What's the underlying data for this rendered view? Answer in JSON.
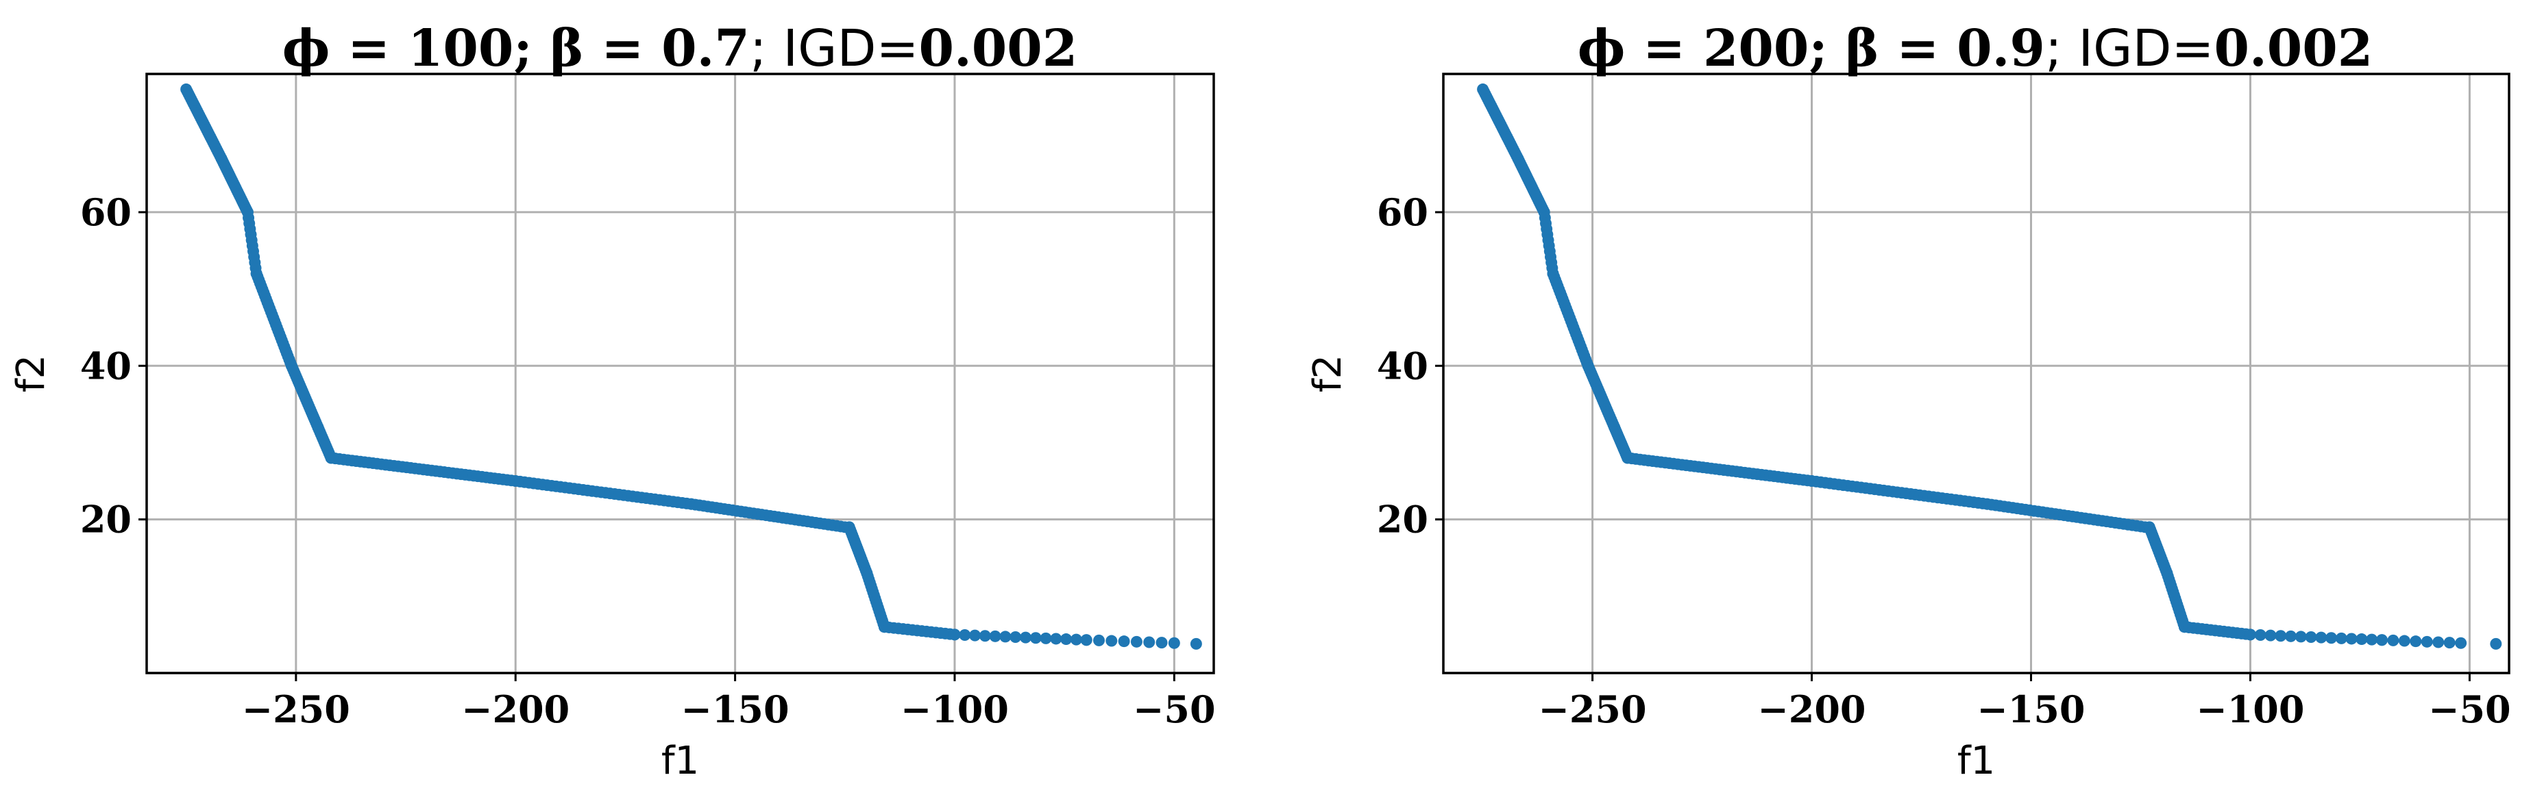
{
  "chart_data": [
    {
      "type": "scatter",
      "title_parts": [
        "ϕ = 100; β = 0.7",
        "; IGD=",
        "0.002"
      ],
      "xlabel": "f1",
      "ylabel": "f2",
      "xlim": [
        -284,
        -41
      ],
      "ylim": [
        0,
        78
      ],
      "xticks": [
        -250,
        -200,
        -150,
        -100,
        -50
      ],
      "xtick_labels": [
        "−250",
        "−200",
        "−150",
        "−100",
        "−50"
      ],
      "yticks": [
        20,
        40,
        60
      ],
      "ytick_labels": [
        "20",
        "40",
        "60"
      ],
      "grid": true,
      "color": "#1f77b4",
      "segments": [
        {
          "from": [
            -275,
            76
          ],
          "to": [
            -267,
            67
          ],
          "n": 30
        },
        {
          "from": [
            -267,
            67
          ],
          "to": [
            -261,
            60
          ],
          "n": 25
        },
        {
          "from": [
            -261,
            60
          ],
          "to": [
            -259,
            52
          ],
          "n": 12
        },
        {
          "from": [
            -259,
            52
          ],
          "to": [
            -251,
            40
          ],
          "n": 30
        },
        {
          "from": [
            -251,
            40
          ],
          "to": [
            -245,
            32
          ],
          "n": 25
        },
        {
          "from": [
            -245,
            32
          ],
          "to": [
            -242,
            28
          ],
          "n": 14
        },
        {
          "from": [
            -242,
            28
          ],
          "to": [
            -200,
            25
          ],
          "n": 45
        },
        {
          "from": [
            -200,
            25
          ],
          "to": [
            -160,
            22
          ],
          "n": 40
        },
        {
          "from": [
            -160,
            22
          ],
          "to": [
            -125,
            19
          ],
          "n": 38
        },
        {
          "from": [
            -124,
            19
          ],
          "to": [
            -120,
            13
          ],
          "n": 18
        },
        {
          "from": [
            -120,
            13
          ],
          "to": [
            -116,
            6
          ],
          "n": 18
        },
        {
          "from": [
            -116,
            6
          ],
          "to": [
            -100,
            5
          ],
          "n": 16
        },
        {
          "from": [
            -100,
            5
          ],
          "to": [
            -70,
            4.3
          ],
          "n": 14
        },
        {
          "from": [
            -70,
            4.3
          ],
          "to": [
            -50,
            3.9
          ],
          "n": 8
        },
        {
          "from": [
            -45,
            3.8
          ],
          "to": [
            -45,
            3.8
          ],
          "n": 1
        }
      ]
    },
    {
      "type": "scatter",
      "title_parts": [
        "ϕ = 200; β = 0.9",
        "; IGD=",
        "0.002"
      ],
      "xlabel": "f1",
      "ylabel": "f2",
      "xlim": [
        -284,
        -41
      ],
      "ylim": [
        0,
        78
      ],
      "xticks": [
        -250,
        -200,
        -150,
        -100,
        -50
      ],
      "xtick_labels": [
        "−250",
        "−200",
        "−150",
        "−100",
        "−50"
      ],
      "yticks": [
        20,
        40,
        60
      ],
      "ytick_labels": [
        "20",
        "40",
        "60"
      ],
      "grid": true,
      "color": "#1f77b4",
      "segments": [
        {
          "from": [
            -275,
            76
          ],
          "to": [
            -267,
            67
          ],
          "n": 30
        },
        {
          "from": [
            -267,
            67
          ],
          "to": [
            -261,
            60
          ],
          "n": 25
        },
        {
          "from": [
            -261,
            60
          ],
          "to": [
            -259,
            52
          ],
          "n": 12
        },
        {
          "from": [
            -259,
            52
          ],
          "to": [
            -251,
            40
          ],
          "n": 30
        },
        {
          "from": [
            -251,
            40
          ],
          "to": [
            -245,
            32
          ],
          "n": 25
        },
        {
          "from": [
            -245,
            32
          ],
          "to": [
            -242,
            28
          ],
          "n": 14
        },
        {
          "from": [
            -242,
            28
          ],
          "to": [
            -200,
            25
          ],
          "n": 45
        },
        {
          "from": [
            -200,
            25
          ],
          "to": [
            -160,
            22
          ],
          "n": 40
        },
        {
          "from": [
            -160,
            22
          ],
          "to": [
            -124,
            19
          ],
          "n": 38
        },
        {
          "from": [
            -123,
            19
          ],
          "to": [
            -119,
            13
          ],
          "n": 18
        },
        {
          "from": [
            -119,
            13
          ],
          "to": [
            -115,
            6
          ],
          "n": 18
        },
        {
          "from": [
            -115,
            6
          ],
          "to": [
            -100,
            5
          ],
          "n": 16
        },
        {
          "from": [
            -100,
            5
          ],
          "to": [
            -70,
            4.3
          ],
          "n": 14
        },
        {
          "from": [
            -70,
            4.3
          ],
          "to": [
            -52,
            3.9
          ],
          "n": 8
        },
        {
          "from": [
            -44,
            3.8
          ],
          "to": [
            -44,
            3.8
          ],
          "n": 1
        }
      ]
    }
  ]
}
